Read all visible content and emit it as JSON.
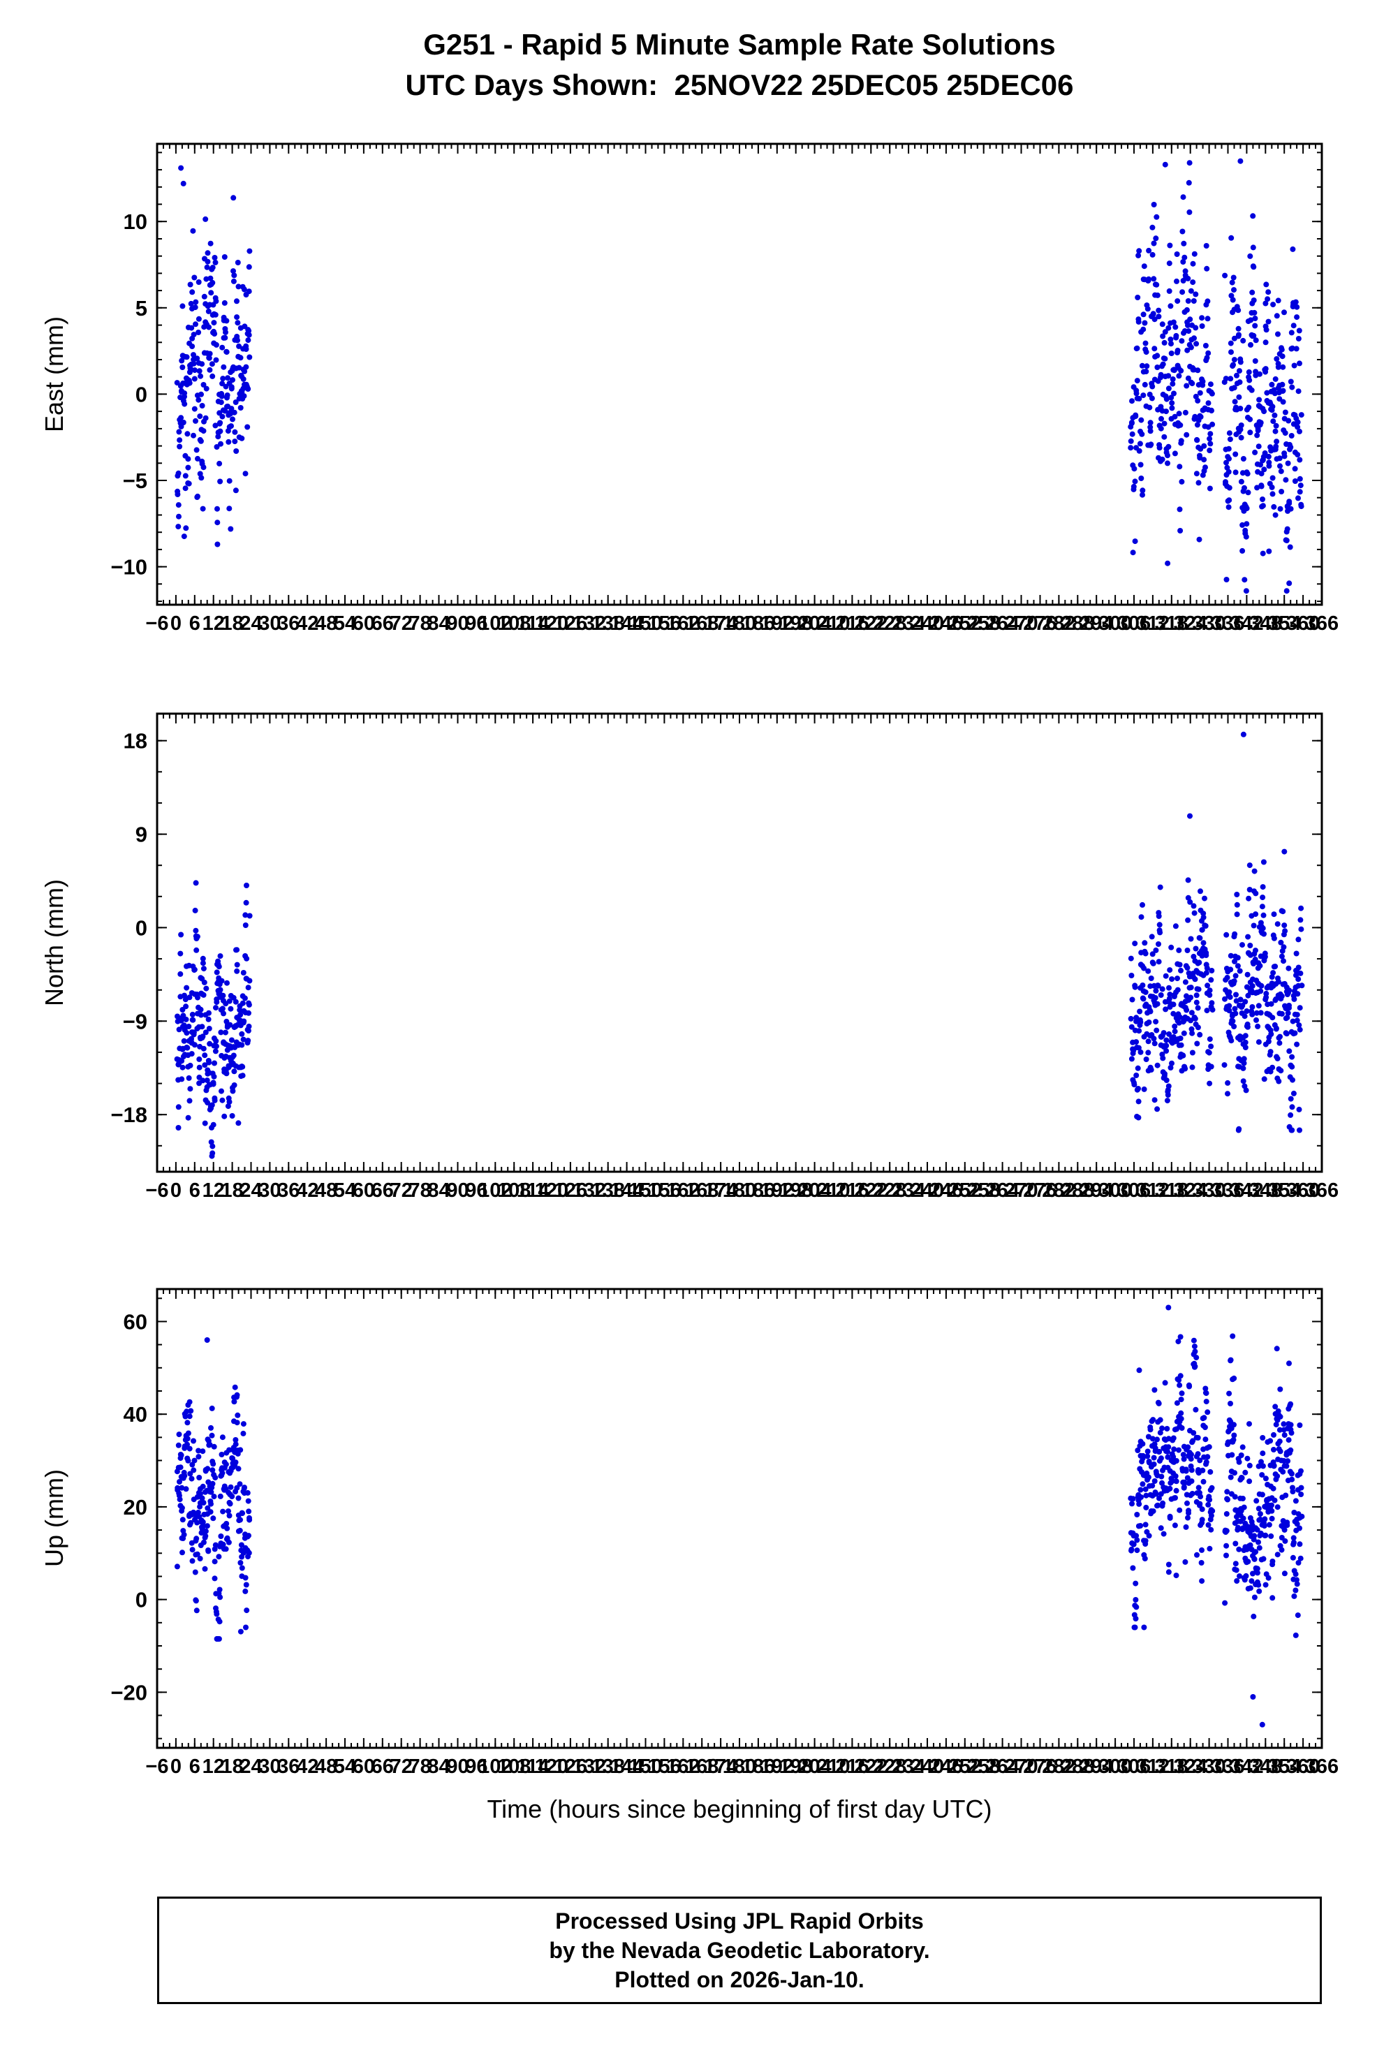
{
  "title": {
    "line1": "G251 - Rapid 5 Minute Sample Rate Solutions",
    "line2": "UTC Days Shown:  25NOV22 25DEC05 25DEC06"
  },
  "xaxis": {
    "label": "Time (hours since beginning of first day UTC)",
    "min": -6,
    "max": 366,
    "major_step": 6,
    "minor_step": 2
  },
  "point_color": "#0000dd",
  "frame_color": "#000000",
  "footer": {
    "line1": "Processed Using JPL Rapid Orbits",
    "line2": "by the Nevada Geodetic Laboratory.",
    "line3": "Plotted on 2026-Jan-10."
  },
  "chart_data": [
    {
      "type": "scatter",
      "name": "east",
      "ylabel": "East (mm)",
      "ylim": [
        -12.2,
        14.5
      ],
      "yticks": [
        -10,
        -5,
        0,
        5,
        10
      ],
      "y_minor_step": 1,
      "clusters": [
        {
          "seed": 11,
          "x0": 0.4,
          "x1": 23.6,
          "n": 280,
          "mean": 0.8,
          "std": 3.6,
          "min": -8.7,
          "max": 13.2
        },
        {
          "seed": 12,
          "x0": 305,
          "x1": 331,
          "n": 285,
          "mean": 1.2,
          "std": 4.2,
          "min": -9.8,
          "max": 13.4
        },
        {
          "seed": 13,
          "x0": 335,
          "x1": 359.5,
          "n": 285,
          "mean": -0.6,
          "std": 4.0,
          "min": -11.4,
          "max": 13.6
        }
      ],
      "extra_points": [
        [
          1.6,
          13.1
        ],
        [
          2.4,
          12.2
        ],
        [
          316,
          13.3
        ],
        [
          340,
          13.5
        ]
      ]
    },
    {
      "type": "scatter",
      "name": "north",
      "ylabel": "North (mm)",
      "ylim": [
        -23.5,
        20.6
      ],
      "yticks": [
        -18,
        -9,
        0,
        9,
        18
      ],
      "y_minor_step": 3,
      "clusters": [
        {
          "seed": 21,
          "x0": 0.4,
          "x1": 23.6,
          "n": 280,
          "mean": -8.5,
          "std": 4.8,
          "min": -22.3,
          "max": 7.6
        },
        {
          "seed": 22,
          "x0": 305,
          "x1": 331,
          "n": 285,
          "mean": -6.0,
          "std": 5.2,
          "min": -19.2,
          "max": 13.0
        },
        {
          "seed": 23,
          "x0": 335,
          "x1": 359.5,
          "n": 285,
          "mean": -8.0,
          "std": 5.0,
          "min": -19.5,
          "max": 9.0
        }
      ],
      "extra_points": [
        [
          341,
          18.6
        ]
      ]
    },
    {
      "type": "scatter",
      "name": "up",
      "ylabel": "Up (mm)",
      "ylim": [
        -32,
        67
      ],
      "yticks": [
        -20,
        0,
        20,
        40,
        60
      ],
      "y_minor_step": 5,
      "clusters": [
        {
          "seed": 31,
          "x0": 0.4,
          "x1": 23.6,
          "n": 280,
          "mean": 20,
          "std": 11,
          "min": -8.5,
          "max": 53
        },
        {
          "seed": 32,
          "x0": 305,
          "x1": 331,
          "n": 285,
          "mean": 25,
          "std": 11,
          "min": -6,
          "max": 58
        },
        {
          "seed": 33,
          "x0": 335,
          "x1": 359.5,
          "n": 285,
          "mean": 20,
          "std": 12,
          "min": -15,
          "max": 57
        }
      ],
      "extra_points": [
        [
          317,
          63
        ],
        [
          10,
          56
        ],
        [
          347,
          -27
        ],
        [
          344,
          -21
        ]
      ]
    }
  ]
}
